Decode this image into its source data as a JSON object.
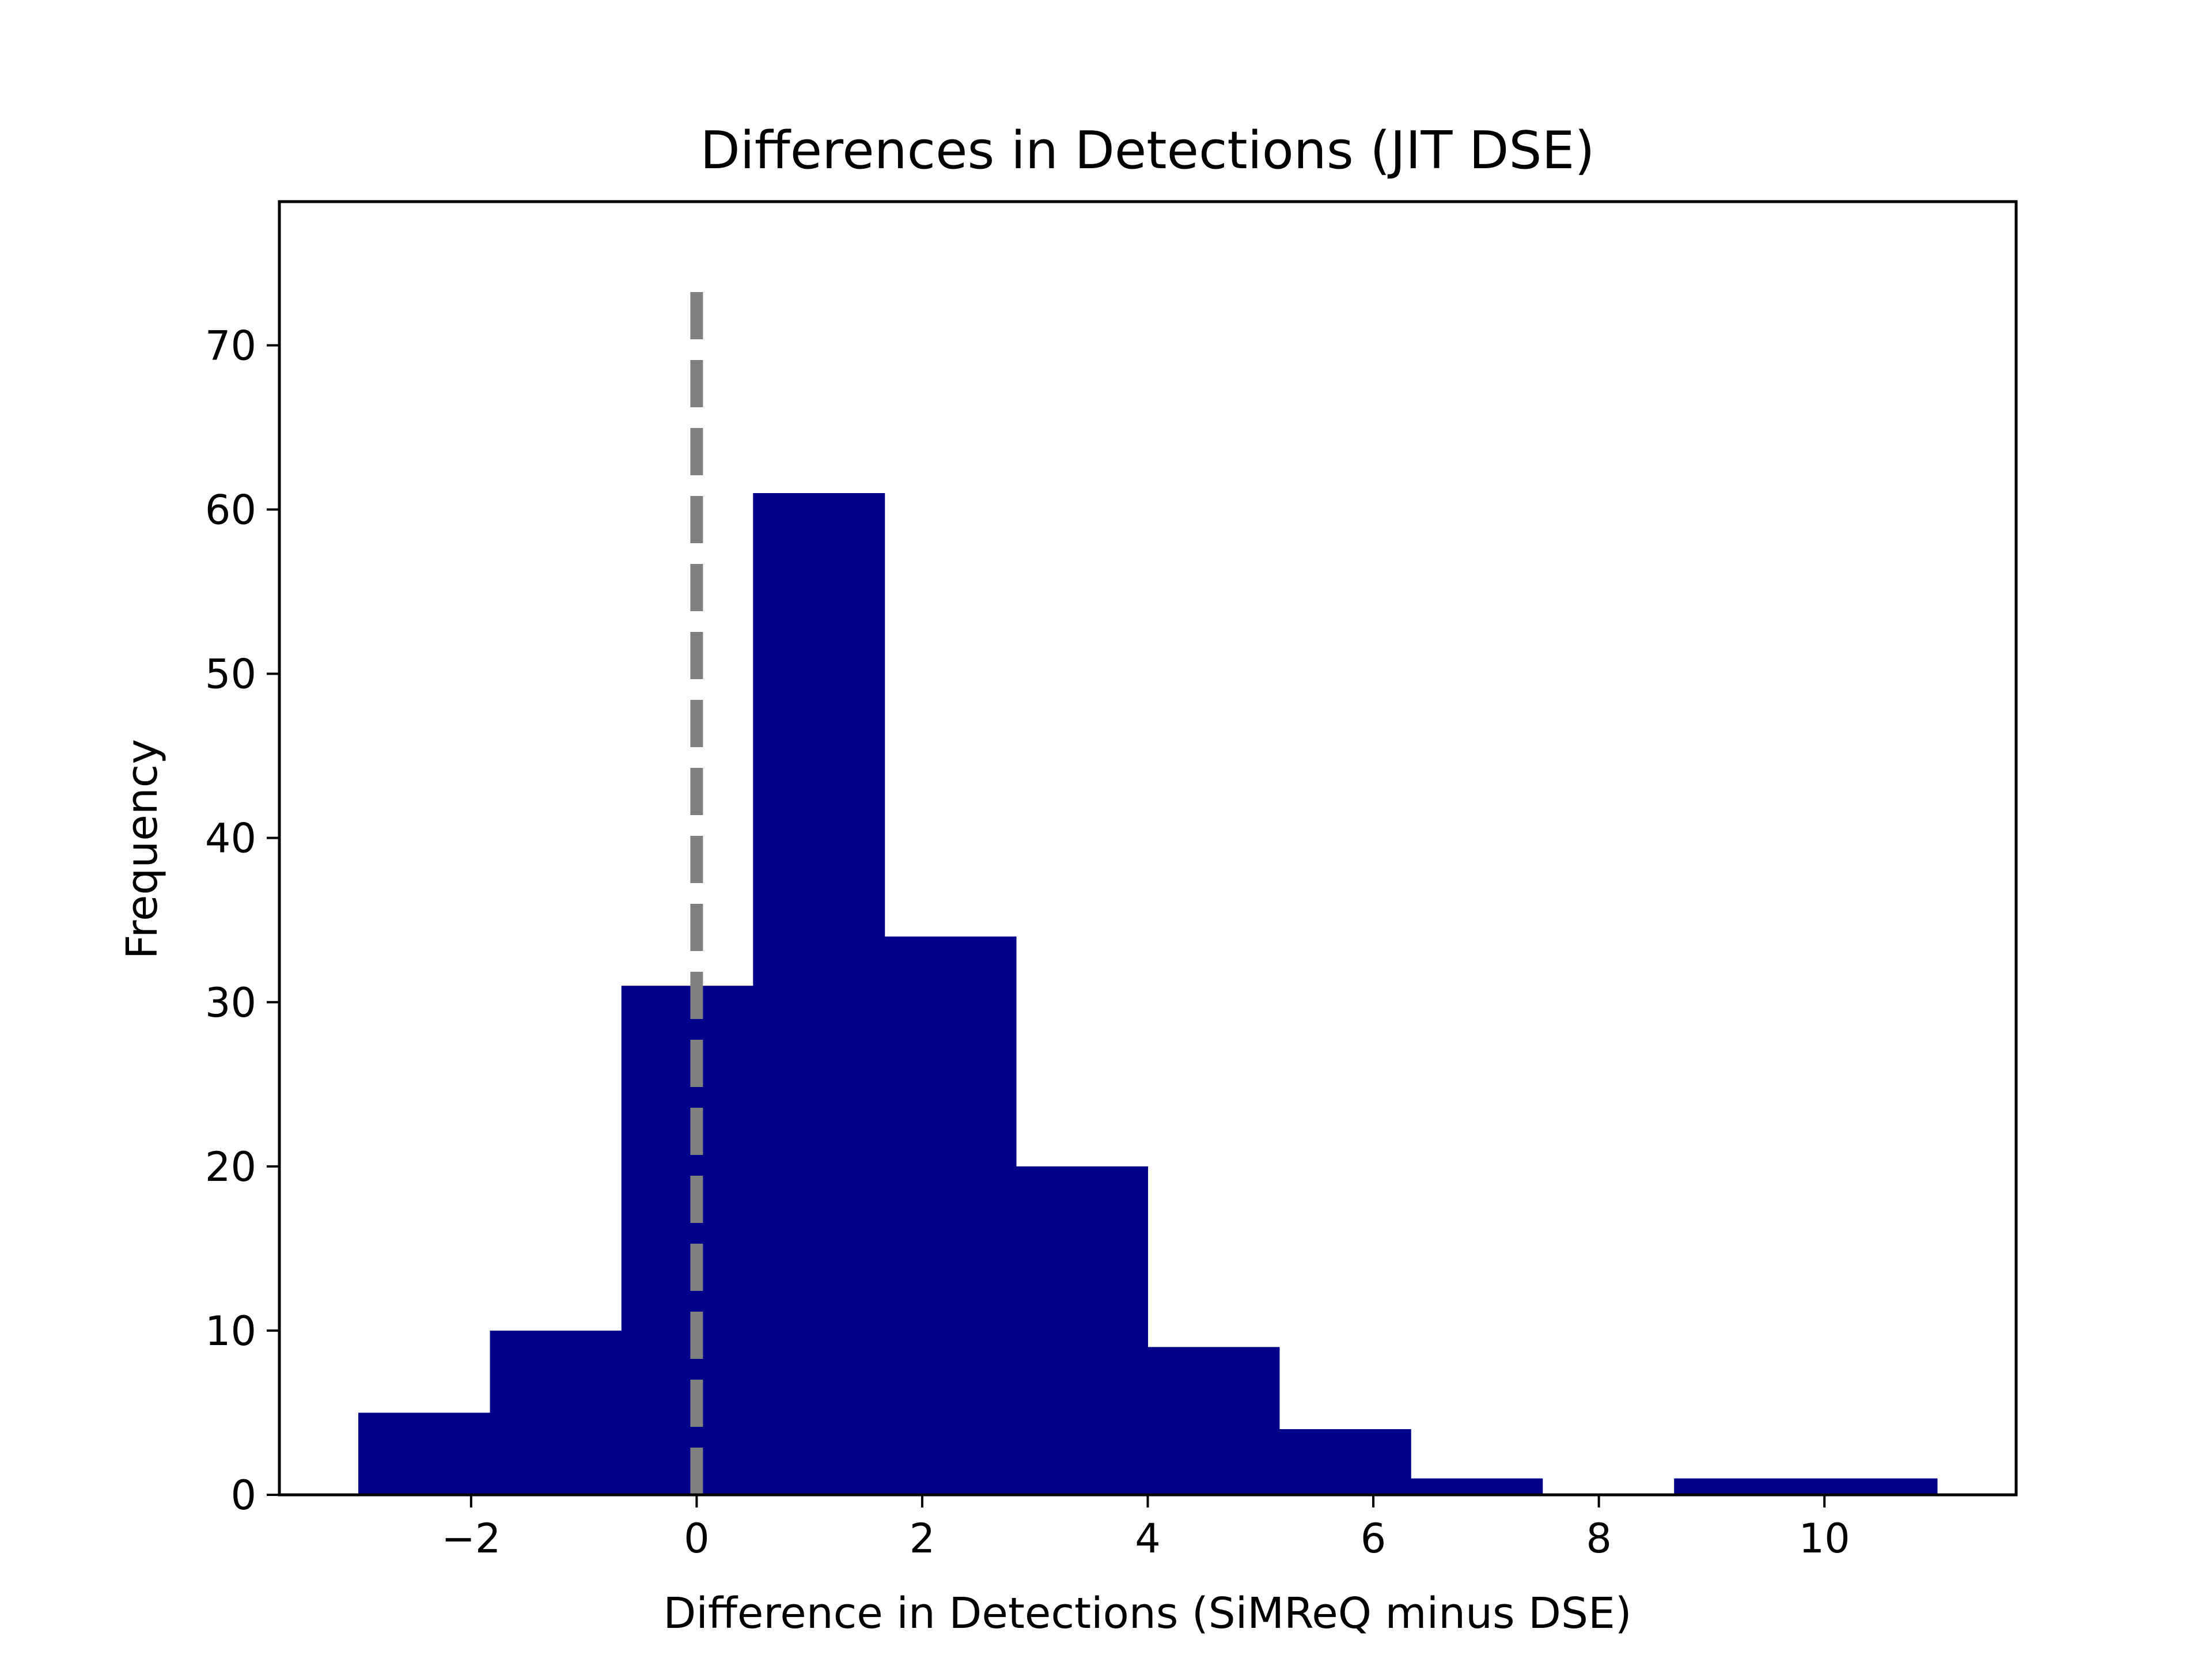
{
  "chart_data": {
    "type": "bar",
    "subtype": "histogram",
    "title": "Differences in Detections (JIT DSE)",
    "xlabel": "Difference in Detections (SiMReQ minus DSE)",
    "ylabel": "Frequency",
    "bin_edges": [
      -3.0,
      -1.833,
      -0.667,
      0.5,
      1.667,
      2.833,
      4.0,
      5.167,
      6.333,
      7.5,
      8.667,
      9.833,
      11.0
    ],
    "values": [
      5,
      10,
      31,
      61,
      34,
      20,
      9,
      4,
      1,
      0,
      1,
      1
    ],
    "xlim": [
      -3.7,
      11.7
    ],
    "ylim": [
      0,
      78.75
    ],
    "xticks": [
      -2,
      0,
      2,
      4,
      6,
      8,
      10
    ],
    "xtick_labels": [
      "−2",
      "0",
      "2",
      "4",
      "6",
      "8",
      "10"
    ],
    "yticks": [
      0,
      10,
      20,
      30,
      40,
      50,
      60,
      70
    ],
    "ytick_labels": [
      "0",
      "10",
      "20",
      "30",
      "40",
      "50",
      "60",
      "70"
    ],
    "reference_line": {
      "x": 0,
      "y_range": [
        0,
        74
      ],
      "style": "dashed",
      "color": "#808080"
    },
    "bar_color": "#00008b",
    "grid": false,
    "legend": "none"
  }
}
